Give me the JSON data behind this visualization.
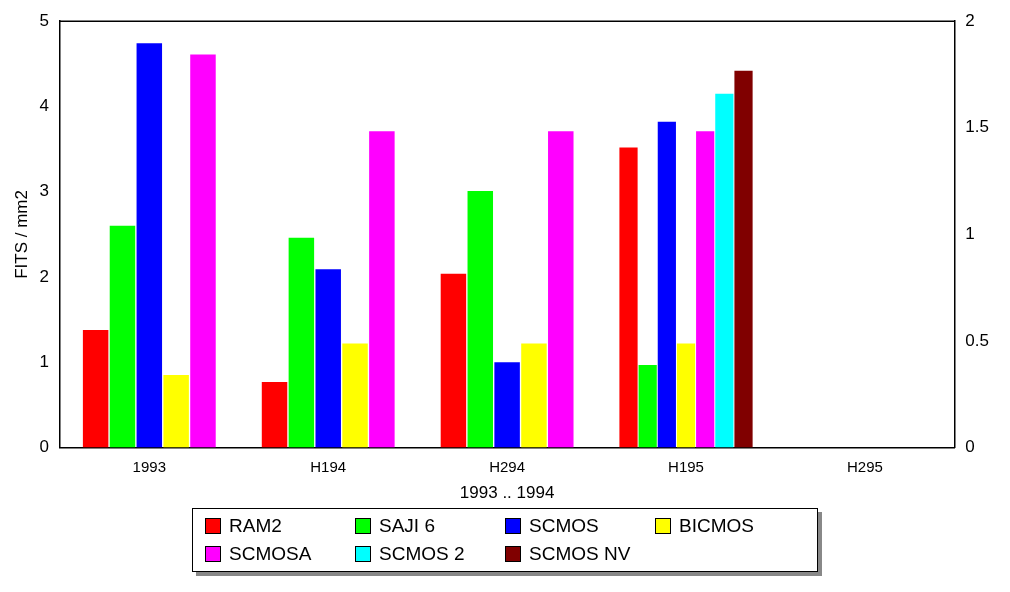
{
  "chart_data": {
    "type": "bar",
    "xlabel": "1993 .. 1994",
    "ylabel": "FITS / mm2",
    "categories": [
      "1993",
      "H194",
      "H294",
      "H195",
      "H295"
    ],
    "series": [
      {
        "name": "RAM2",
        "color": "#ff0000",
        "values": [
          1.38,
          0.77,
          2.04,
          3.52,
          null
        ]
      },
      {
        "name": "SAJI 6",
        "color": "#00ff00",
        "values": [
          2.6,
          2.46,
          3.01,
          0.97,
          null
        ]
      },
      {
        "name": "SCMOS",
        "color": "#0000ff",
        "values": [
          4.74,
          2.09,
          1.0,
          3.82,
          null
        ]
      },
      {
        "name": "BICMOS",
        "color": "#ffff00",
        "values": [
          0.85,
          1.22,
          1.22,
          1.22,
          null
        ]
      },
      {
        "name": "SCMOSA",
        "color": "#ff00ff",
        "values": [
          4.61,
          3.71,
          3.71,
          3.71,
          null
        ]
      },
      {
        "name": "SCMOS 2",
        "color": "#00ffff",
        "values": [
          null,
          null,
          null,
          4.15,
          null
        ]
      },
      {
        "name": "SCMOS NV",
        "color": "#800000",
        "values": [
          null,
          null,
          null,
          4.42,
          null
        ]
      }
    ],
    "ylim": [
      0,
      5
    ],
    "yticks": [
      0,
      1,
      2,
      3,
      4,
      5
    ],
    "y2lim": [
      0,
      2
    ],
    "y2ticks": [
      0,
      0.5,
      1,
      1.5,
      2
    ],
    "grid": false,
    "legend": "bottom"
  }
}
